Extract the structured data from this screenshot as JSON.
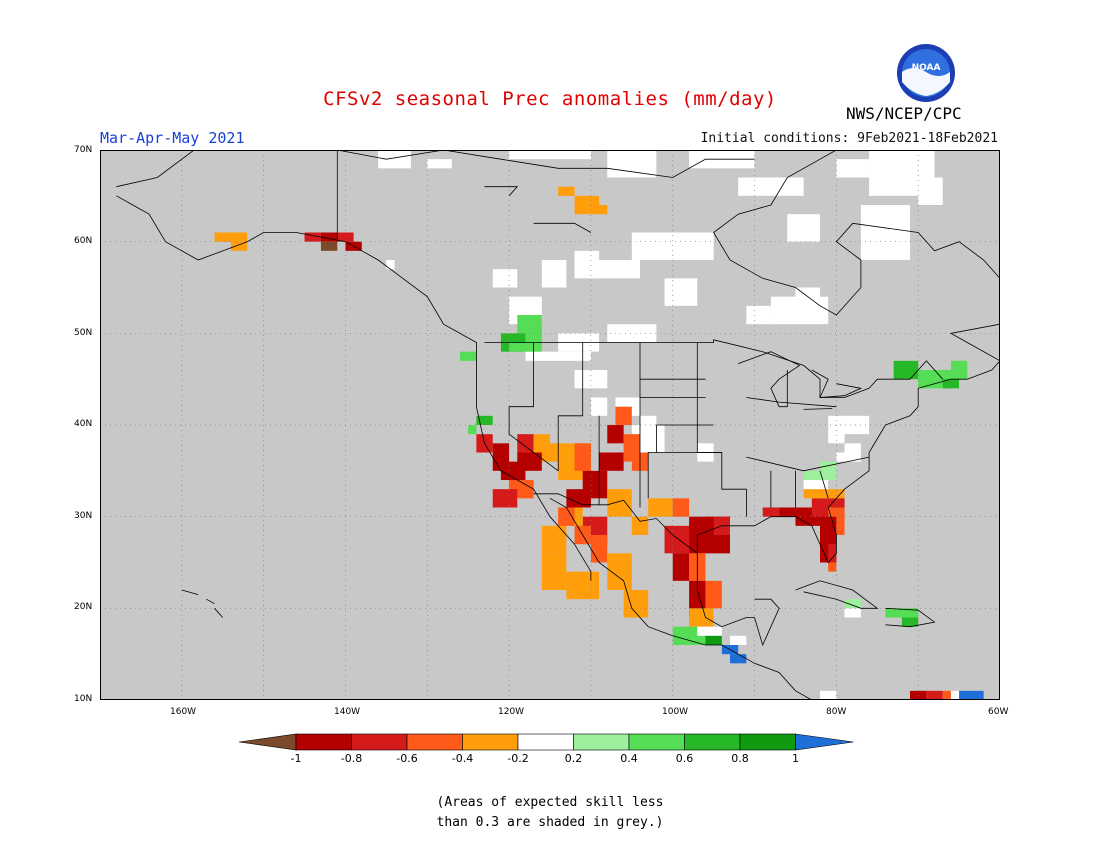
{
  "title": "CFSv2 seasonal Prec anomalies (mm/day)",
  "season": "Mar-Apr-May 2021",
  "initial_conditions": "Initial conditions: 9Feb2021-18Feb2021",
  "agency": "NWS/NCEP/CPC",
  "logo_text": "NOAA",
  "lat_labels": [
    "70N",
    "60N",
    "50N",
    "40N",
    "30N",
    "20N",
    "10N"
  ],
  "lon_labels": [
    "160W",
    "140W",
    "120W",
    "100W",
    "80W",
    "60W"
  ],
  "colorbar": {
    "ticks": [
      "-1",
      "-0.8",
      "-0.6",
      "-0.4",
      "-0.2",
      "0.2",
      "0.4",
      "0.6",
      "0.8",
      "1"
    ],
    "colors": [
      "#7a4a2a",
      "#b50000",
      "#d41a1a",
      "#ff5a1a",
      "#ff9e0a",
      "#ffffff",
      "#9cf09c",
      "#55dd55",
      "#27b827",
      "#109a10",
      "#1e6fd8"
    ]
  },
  "note_line1": "(Areas of expected skill less",
  "note_line2": "than 0.3 are shaded in grey.)",
  "colors": {
    "no_skill": "#c8c8c8",
    "title": "#e00000",
    "season": "#1a3fd8"
  }
}
